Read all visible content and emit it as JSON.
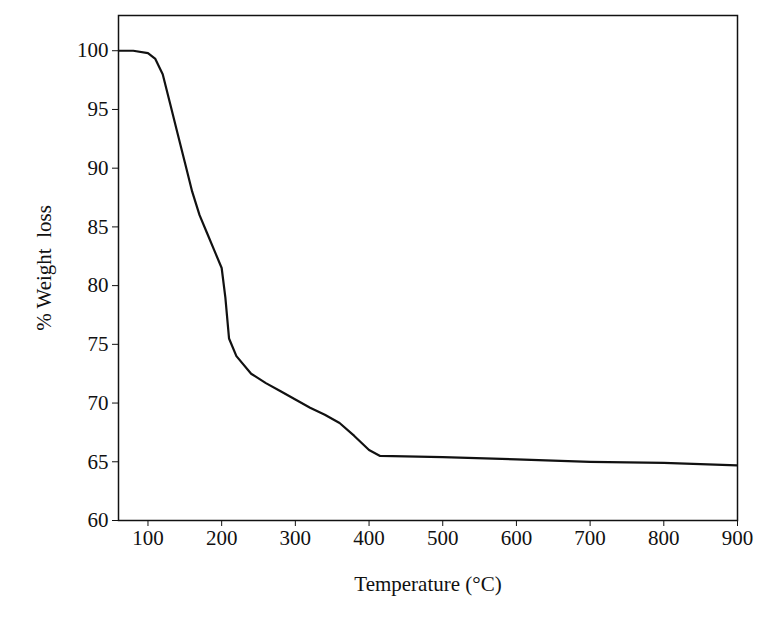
{
  "chart_data": {
    "type": "line",
    "x_label": "Temperature (°C)",
    "y_label": "% Weight  loss",
    "color": "#111111",
    "xlim": [
      60,
      900
    ],
    "xticks": [
      100,
      200,
      300,
      400,
      500,
      600,
      700,
      800,
      900
    ],
    "ylim": [
      60,
      103
    ],
    "yticks": [
      60,
      65,
      70,
      75,
      80,
      85,
      90,
      95,
      100
    ],
    "grid": false,
    "x": [
      60,
      80,
      100,
      110,
      120,
      130,
      140,
      150,
      160,
      170,
      180,
      190,
      200,
      205,
      210,
      220,
      240,
      260,
      280,
      300,
      320,
      340,
      360,
      380,
      400,
      415,
      500,
      600,
      700,
      800,
      900
    ],
    "values": [
      100,
      100,
      99.8,
      99.3,
      98,
      95.5,
      93,
      90.5,
      88,
      86,
      84.5,
      83,
      81.5,
      79,
      75.5,
      74,
      72.5,
      71.7,
      71,
      70.3,
      69.6,
      69,
      68.3,
      67.2,
      66,
      65.5,
      65.4,
      65.2,
      65.0,
      64.9,
      64.7
    ]
  }
}
